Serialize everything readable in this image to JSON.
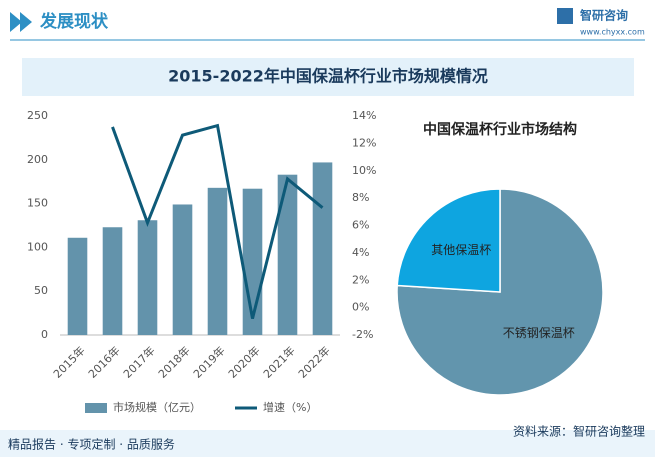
{
  "header": {
    "title": "发展现状",
    "logo": "智研咨询",
    "url": "www.chyxx.com"
  },
  "footer": {
    "left": "精品报告 · 专项定制 · 品质服务",
    "source": "资料来源：智研咨询整理"
  },
  "chart_data": [
    {
      "type": "bar",
      "title": "2015-2022年中国保温杯行业市场规模情况",
      "categories": [
        "2015年",
        "2016年",
        "2017年",
        "2018年",
        "2019年",
        "2020年",
        "2021年",
        "2022年"
      ],
      "series": [
        {
          "name": "市场规模（亿元）",
          "type": "bar",
          "color": "#6393ab",
          "values": [
            111,
            123,
            131,
            149,
            168,
            167,
            183,
            197
          ]
        },
        {
          "name": "增速（%）",
          "type": "line",
          "axis": "y2",
          "color": "#0e5a78",
          "values": [
            null,
            13.2,
            6.2,
            12.6,
            13.3,
            -0.8,
            9.4,
            7.3
          ]
        }
      ],
      "ylim": [
        0,
        250
      ],
      "yticks": [
        0,
        50,
        100,
        150,
        200,
        250
      ],
      "y2lim": [
        -2,
        14
      ],
      "y2ticks": [
        {
          "value": -2,
          "label": "-2%"
        },
        {
          "value": 0,
          "label": "0%"
        },
        {
          "value": 2,
          "label": "2%"
        },
        {
          "value": 4,
          "label": "4%"
        },
        {
          "value": 6,
          "label": "6%"
        },
        {
          "value": 8,
          "label": "8%"
        },
        {
          "value": 10,
          "label": "10%"
        },
        {
          "value": 12,
          "label": "12%"
        },
        {
          "value": 14,
          "label": "14%"
        }
      ],
      "legend": "bottom"
    },
    {
      "type": "pie",
      "title": "中国保温杯行业市场结构",
      "categories": [
        "不锈钢保温杯",
        "其他保温杯"
      ],
      "values": [
        76,
        24
      ],
      "colors": [
        "#6295ad",
        "#0ea5e0"
      ]
    }
  ]
}
